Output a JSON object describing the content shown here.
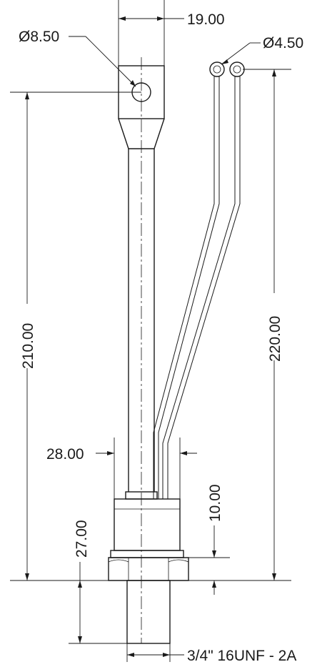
{
  "dimensions": {
    "width_top": "19.00",
    "hole_diameter": "Ø8.50",
    "terminal_diameter": "Ø4.50",
    "height_main": "210.00",
    "height_leads": "220.00",
    "body_width": "28.00",
    "body_step": "10.00",
    "hex_height": "27.00",
    "thread": "3/4\" 16UNF - 2A"
  }
}
